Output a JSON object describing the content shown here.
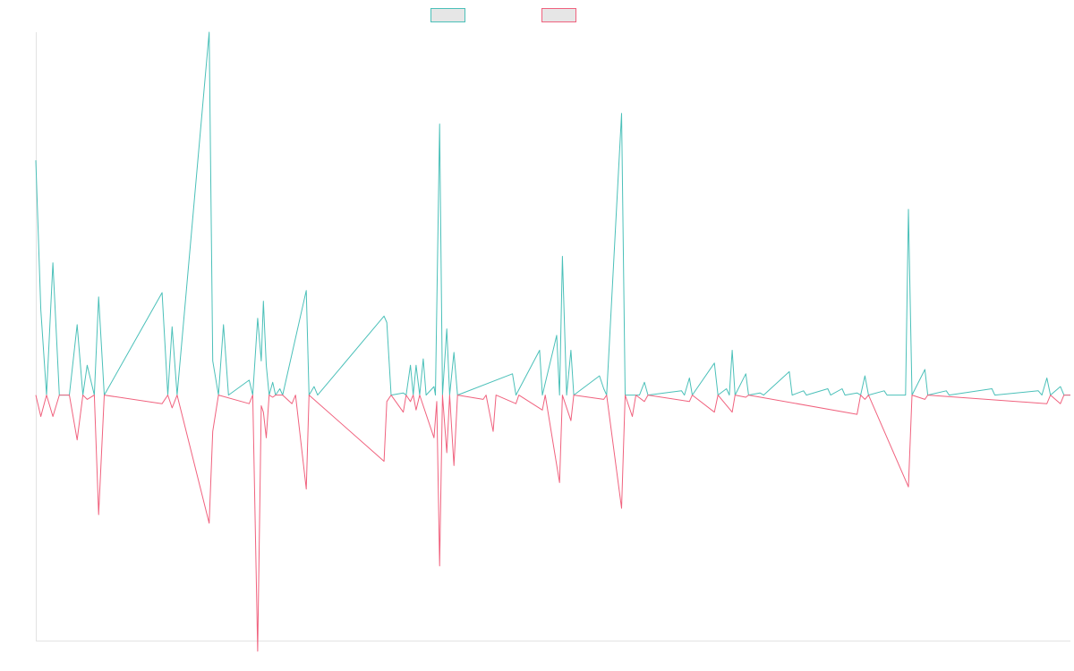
{
  "chart_data": {
    "type": "line",
    "title": "",
    "xlabel": "",
    "ylabel": "",
    "grid": false,
    "legend": "top-center",
    "xlim": [
      0,
      145
    ],
    "ylim": [
      -11.5,
      17
    ],
    "series": [
      {
        "color": "#4bc0b9",
        "points": [
          [
            0,
            11
          ],
          [
            0.7,
            4
          ],
          [
            1.5,
            0
          ],
          [
            2.4,
            6.2
          ],
          [
            3.3,
            0
          ],
          [
            4.7,
            0
          ],
          [
            5.8,
            3.3
          ],
          [
            6.6,
            0
          ],
          [
            7.2,
            1.4
          ],
          [
            8.2,
            0
          ],
          [
            8.8,
            4.6
          ],
          [
            9.6,
            0
          ],
          [
            17.7,
            4.8
          ],
          [
            18.5,
            0
          ],
          [
            19.1,
            3.2
          ],
          [
            19.8,
            0
          ],
          [
            24.3,
            17
          ],
          [
            24.8,
            1.6
          ],
          [
            25.6,
            0
          ],
          [
            26.3,
            3.3
          ],
          [
            27,
            0
          ],
          [
            29.9,
            0.7
          ],
          [
            30.4,
            0
          ],
          [
            31.1,
            3.6
          ],
          [
            31.6,
            1.6
          ],
          [
            31.9,
            4.4
          ],
          [
            32.3,
            1.4
          ],
          [
            32.7,
            0
          ],
          [
            33.2,
            0.6
          ],
          [
            33.6,
            0
          ],
          [
            34.2,
            0.3
          ],
          [
            34.6,
            0
          ],
          [
            37.9,
            4.9
          ],
          [
            38.3,
            0
          ],
          [
            39,
            0.4
          ],
          [
            39.5,
            0
          ],
          [
            48.8,
            3.7
          ],
          [
            49.2,
            3.4
          ],
          [
            49.8,
            0
          ],
          [
            51.5,
            0.1
          ],
          [
            51.9,
            0
          ],
          [
            52.5,
            1.4
          ],
          [
            52.9,
            0
          ],
          [
            53.3,
            1.4
          ],
          [
            53.8,
            0
          ],
          [
            54.3,
            1.7
          ],
          [
            54.7,
            0
          ],
          [
            55.8,
            0.4
          ],
          [
            56,
            0
          ],
          [
            56.6,
            12.7
          ],
          [
            57,
            0
          ],
          [
            57.6,
            3.1
          ],
          [
            58,
            0
          ],
          [
            58.6,
            2
          ],
          [
            59.1,
            0
          ],
          [
            66.8,
            1
          ],
          [
            67.3,
            0
          ],
          [
            70.6,
            2.1
          ],
          [
            71,
            0
          ],
          [
            73,
            2.8
          ],
          [
            73.4,
            0
          ],
          [
            73.8,
            6.5
          ],
          [
            74.4,
            0
          ],
          [
            75,
            2.1
          ],
          [
            75.4,
            0
          ],
          [
            79,
            0.9
          ],
          [
            79.6,
            0.3
          ],
          [
            80,
            0
          ],
          [
            82.1,
            13.2
          ],
          [
            82.6,
            0
          ],
          [
            84.6,
            0
          ],
          [
            85.3,
            0.6
          ],
          [
            85.8,
            0
          ],
          [
            90.5,
            0.2
          ],
          [
            90.9,
            0
          ],
          [
            91.6,
            0.8
          ],
          [
            92,
            0
          ],
          [
            95.1,
            1.5
          ],
          [
            95.6,
            0
          ],
          [
            96.8,
            0.3
          ],
          [
            97.2,
            0
          ],
          [
            97.6,
            2.1
          ],
          [
            98,
            0
          ],
          [
            99.5,
            1
          ],
          [
            99.9,
            0
          ],
          [
            101.5,
            0.1
          ],
          [
            102,
            0
          ],
          [
            105.6,
            1.1
          ],
          [
            106,
            0
          ],
          [
            107.6,
            0.2
          ],
          [
            108,
            0
          ],
          [
            111,
            0.3
          ],
          [
            111.4,
            0
          ],
          [
            113,
            0.3
          ],
          [
            113.4,
            0
          ],
          [
            115.1,
            0.1
          ],
          [
            115.6,
            0
          ],
          [
            116.2,
            0.9
          ],
          [
            116.7,
            0
          ],
          [
            118.9,
            0.2
          ],
          [
            119.3,
            0
          ],
          [
            121.9,
            0
          ],
          [
            122.3,
            8.7
          ],
          [
            122.8,
            0
          ],
          [
            124.6,
            1.2
          ],
          [
            125,
            0
          ],
          [
            127.6,
            0.2
          ],
          [
            128,
            0
          ],
          [
            134,
            0.3
          ],
          [
            134.4,
            0
          ],
          [
            140.5,
            0.2
          ],
          [
            141,
            0
          ],
          [
            141.7,
            0.8
          ],
          [
            142.2,
            0
          ],
          [
            143.6,
            0.4
          ],
          [
            144.1,
            0
          ],
          [
            145,
            0
          ]
        ]
      },
      {
        "color": "#f0627e",
        "points": [
          [
            0,
            0
          ],
          [
            0.7,
            -1
          ],
          [
            1.5,
            0
          ],
          [
            2.4,
            -1
          ],
          [
            3.3,
            0
          ],
          [
            4.7,
            0
          ],
          [
            5.8,
            -2.1
          ],
          [
            6.6,
            0
          ],
          [
            7.2,
            -0.2
          ],
          [
            8.2,
            0
          ],
          [
            8.8,
            -5.6
          ],
          [
            9.6,
            0
          ],
          [
            17.7,
            -0.4
          ],
          [
            18.5,
            0
          ],
          [
            19.1,
            -0.6
          ],
          [
            19.8,
            0
          ],
          [
            24.3,
            -6
          ],
          [
            24.8,
            -1.7
          ],
          [
            25.6,
            0
          ],
          [
            29.9,
            -0.4
          ],
          [
            30.4,
            0
          ],
          [
            31.1,
            -12
          ],
          [
            31.6,
            -0.5
          ],
          [
            31.9,
            -0.8
          ],
          [
            32.3,
            -2
          ],
          [
            32.7,
            0
          ],
          [
            33.2,
            -0.1
          ],
          [
            33.6,
            0
          ],
          [
            34.6,
            0
          ],
          [
            35.9,
            -0.4
          ],
          [
            36.4,
            0
          ],
          [
            37.9,
            -4.4
          ],
          [
            38.3,
            0
          ],
          [
            48.8,
            -3.1
          ],
          [
            49.2,
            -0.3
          ],
          [
            49.8,
            0
          ],
          [
            51.5,
            -0.8
          ],
          [
            51.9,
            0
          ],
          [
            52.5,
            -0.3
          ],
          [
            52.9,
            0
          ],
          [
            53.3,
            -0.7
          ],
          [
            53.8,
            0
          ],
          [
            55.8,
            -2
          ],
          [
            56.2,
            -0.3
          ],
          [
            56.6,
            -8
          ],
          [
            57,
            0
          ],
          [
            57.6,
            -2.7
          ],
          [
            58,
            0
          ],
          [
            58.6,
            -3.3
          ],
          [
            59.1,
            0
          ],
          [
            62.7,
            -0.2
          ],
          [
            63.1,
            0
          ],
          [
            64.1,
            -1.7
          ],
          [
            64.5,
            0
          ],
          [
            67.3,
            -0.4
          ],
          [
            67.7,
            0
          ],
          [
            71,
            -0.7
          ],
          [
            71.4,
            0
          ],
          [
            73.4,
            -4.1
          ],
          [
            73.8,
            0
          ],
          [
            75,
            -1.2
          ],
          [
            75.4,
            0
          ],
          [
            79.6,
            -0.2
          ],
          [
            80,
            0
          ],
          [
            82.1,
            -5.3
          ],
          [
            82.6,
            0
          ],
          [
            83.6,
            -1
          ],
          [
            84.1,
            0
          ],
          [
            85.3,
            -0.3
          ],
          [
            85.8,
            0
          ],
          [
            91.6,
            -0.3
          ],
          [
            92,
            0
          ],
          [
            95.1,
            -0.8
          ],
          [
            95.6,
            0
          ],
          [
            97.6,
            -0.8
          ],
          [
            98,
            0
          ],
          [
            99.5,
            -0.1
          ],
          [
            99.9,
            0
          ],
          [
            115.1,
            -0.9
          ],
          [
            115.6,
            0
          ],
          [
            116.2,
            -0.2
          ],
          [
            116.7,
            0
          ],
          [
            122.3,
            -4.3
          ],
          [
            122.8,
            0
          ],
          [
            124.6,
            -0.2
          ],
          [
            125,
            0
          ],
          [
            141.7,
            -0.4
          ],
          [
            142.2,
            0
          ],
          [
            143.6,
            -0.4
          ],
          [
            144.1,
            0
          ],
          [
            145,
            0
          ]
        ]
      }
    ]
  }
}
